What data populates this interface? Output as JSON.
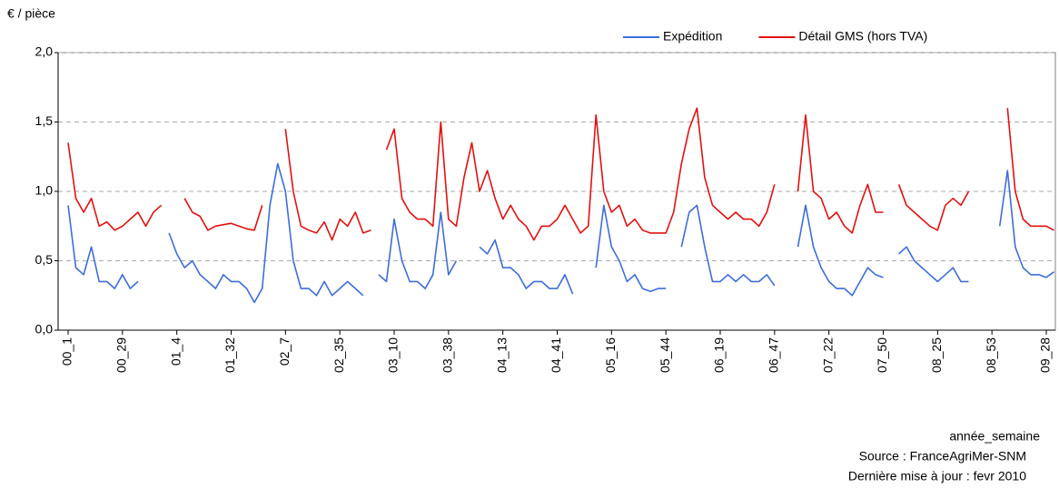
{
  "chart_data": {
    "type": "line",
    "y_label": "€ / pièce",
    "x_label": "année_semaine",
    "source": "Source : FranceAgriMer-SNM",
    "updated": "Dernière mise à jour : fevr 2010",
    "categories": [
      "00_1",
      null,
      null,
      null,
      null,
      null,
      null,
      "00_29",
      null,
      null,
      null,
      null,
      null,
      null,
      "01_4",
      null,
      null,
      null,
      null,
      null,
      null,
      "01_32",
      null,
      null,
      null,
      null,
      null,
      null,
      "02_7",
      null,
      null,
      null,
      null,
      null,
      null,
      "02_35",
      null,
      null,
      null,
      null,
      null,
      null,
      "03_10",
      null,
      null,
      null,
      null,
      null,
      null,
      "03_38",
      null,
      null,
      null,
      null,
      null,
      null,
      "04_13",
      null,
      null,
      null,
      null,
      null,
      null,
      "04_41",
      null,
      null,
      null,
      null,
      null,
      null,
      "05_16",
      null,
      null,
      null,
      null,
      null,
      null,
      "05_44",
      null,
      null,
      null,
      null,
      null,
      null,
      "06_19",
      null,
      null,
      null,
      null,
      null,
      null,
      "06_47",
      null,
      null,
      null,
      null,
      null,
      null,
      "07_22",
      null,
      null,
      null,
      null,
      null,
      null,
      "07_50",
      null,
      null,
      null,
      null,
      null,
      null,
      "08_25",
      null,
      null,
      null,
      null,
      null,
      null,
      "08_53",
      null,
      null,
      null,
      null,
      null,
      null,
      "09_28",
      null
    ],
    "series": [
      {
        "name": "Expédition",
        "color": "#3d6ddb",
        "values": [
          0.9,
          0.45,
          0.4,
          0.6,
          0.35,
          0.35,
          0.3,
          0.4,
          0.3,
          0.35,
          null,
          null,
          null,
          0.7,
          0.55,
          0.45,
          0.5,
          0.4,
          0.35,
          0.3,
          0.4,
          0.35,
          0.35,
          0.3,
          0.2,
          0.3,
          0.9,
          1.2,
          1.0,
          0.5,
          0.3,
          0.3,
          0.25,
          0.35,
          0.25,
          0.3,
          0.35,
          0.3,
          0.25,
          null,
          0.4,
          0.35,
          0.8,
          0.5,
          0.35,
          0.35,
          0.3,
          0.4,
          0.85,
          0.4,
          0.5,
          null,
          null,
          0.6,
          0.55,
          0.65,
          0.45,
          0.45,
          0.4,
          0.3,
          0.35,
          0.35,
          0.3,
          0.3,
          0.4,
          0.26,
          null,
          null,
          0.45,
          0.9,
          0.6,
          0.5,
          0.35,
          0.4,
          0.3,
          0.28,
          0.3,
          0.3,
          null,
          0.6,
          0.85,
          0.9,
          0.6,
          0.35,
          0.35,
          0.4,
          0.35,
          0.4,
          0.35,
          0.35,
          0.4,
          0.32,
          null,
          null,
          0.6,
          0.9,
          0.6,
          0.45,
          0.35,
          0.3,
          0.3,
          0.25,
          0.35,
          0.45,
          0.4,
          0.38,
          null,
          0.55,
          0.6,
          0.5,
          0.45,
          0.4,
          0.35,
          0.4,
          0.45,
          0.35,
          0.35,
          null,
          null,
          null,
          0.75,
          1.15,
          0.6,
          0.45,
          0.4,
          0.4,
          0.38,
          0.42
        ]
      },
      {
        "name": "Détail GMS (hors TVA)",
        "color": "#e31010",
        "values": [
          1.35,
          0.95,
          0.85,
          0.95,
          0.75,
          0.78,
          0.72,
          0.75,
          0.8,
          0.85,
          0.75,
          0.85,
          0.9,
          null,
          null,
          0.95,
          0.85,
          0.82,
          0.72,
          0.75,
          0.76,
          0.77,
          0.75,
          0.73,
          0.72,
          0.9,
          null,
          null,
          1.45,
          1.0,
          0.75,
          0.72,
          0.7,
          0.78,
          0.65,
          0.8,
          0.75,
          0.85,
          0.7,
          0.72,
          null,
          1.3,
          1.45,
          0.95,
          0.85,
          0.8,
          0.8,
          0.75,
          1.5,
          0.8,
          0.75,
          1.1,
          1.35,
          1.0,
          1.15,
          0.95,
          0.8,
          0.9,
          0.8,
          0.75,
          0.65,
          0.75,
          0.75,
          0.8,
          0.9,
          0.8,
          0.7,
          0.75,
          1.55,
          1.0,
          0.85,
          0.9,
          0.75,
          0.8,
          0.72,
          0.7,
          0.7,
          0.7,
          0.85,
          1.2,
          1.45,
          1.6,
          1.1,
          0.9,
          0.85,
          0.8,
          0.85,
          0.8,
          0.8,
          0.75,
          0.85,
          1.05,
          null,
          null,
          1.0,
          1.55,
          1.0,
          0.95,
          0.8,
          0.85,
          0.75,
          0.7,
          0.9,
          1.05,
          0.85,
          0.85,
          null,
          1.05,
          0.9,
          0.85,
          0.8,
          0.75,
          0.72,
          0.9,
          0.95,
          0.9,
          1.0,
          null,
          null,
          null,
          null,
          1.6,
          1.0,
          0.8,
          0.75,
          0.75,
          0.75,
          0.72
        ]
      }
    ],
    "ylim": [
      0,
      2
    ],
    "yticks": [
      {
        "value": 0,
        "label": "0,0"
      },
      {
        "value": 0.5,
        "label": "0,5"
      },
      {
        "value": 1,
        "label": "1,0"
      },
      {
        "value": 1.5,
        "label": "1,5"
      },
      {
        "value": 2,
        "label": "2,0"
      }
    ],
    "grid": true,
    "legend": "top-right"
  }
}
